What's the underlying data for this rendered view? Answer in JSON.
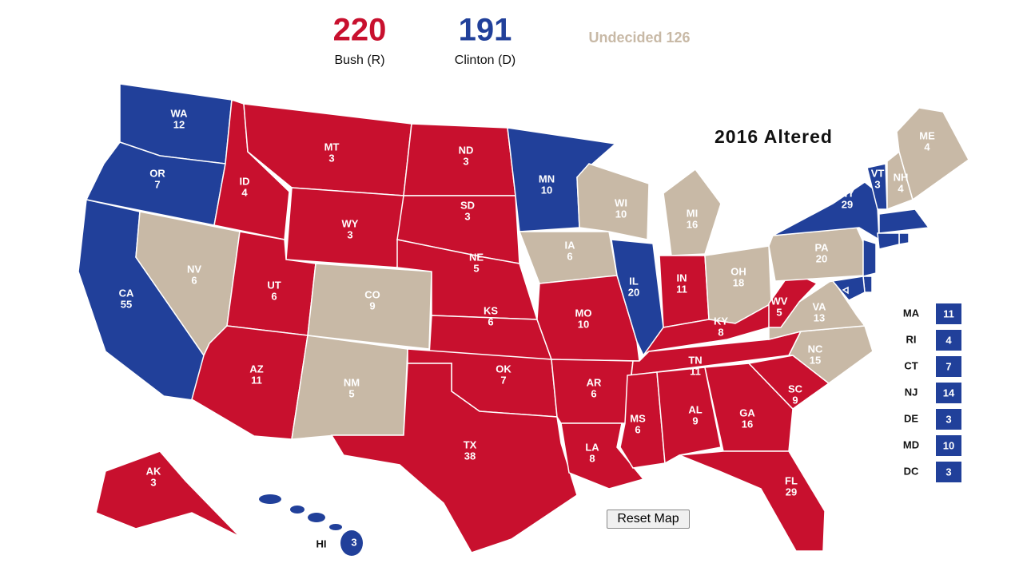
{
  "header": {
    "candidates": [
      {
        "total": 220,
        "name": "Bush (R)",
        "color": "#c8102e"
      },
      {
        "total": 191,
        "name": "Clinton (D)",
        "color": "#21409a"
      }
    ],
    "undecided": "Undecided 126",
    "undecided_color": "#c8b9a6"
  },
  "title": "2016 Altered",
  "button": "Reset Map",
  "states": [
    {
      "abbr": "WA",
      "ev": 12,
      "color": "#21409a"
    },
    {
      "abbr": "OR",
      "ev": 7,
      "color": "#21409a"
    },
    {
      "abbr": "CA",
      "ev": 55,
      "color": "#21409a"
    },
    {
      "abbr": "NV",
      "ev": 6,
      "color": "#c8b9a6"
    },
    {
      "abbr": "ID",
      "ev": 4,
      "color": "#c8102e"
    },
    {
      "abbr": "MT",
      "ev": 3,
      "color": "#c8102e"
    },
    {
      "abbr": "WY",
      "ev": 3,
      "color": "#c8102e"
    },
    {
      "abbr": "UT",
      "ev": 6,
      "color": "#c8102e"
    },
    {
      "abbr": "AZ",
      "ev": 11,
      "color": "#c8102e"
    },
    {
      "abbr": "CO",
      "ev": 9,
      "color": "#c8b9a6"
    },
    {
      "abbr": "NM",
      "ev": 5,
      "color": "#c8b9a6"
    },
    {
      "abbr": "ND",
      "ev": 3,
      "color": "#c8102e"
    },
    {
      "abbr": "SD",
      "ev": 3,
      "color": "#c8102e"
    },
    {
      "abbr": "NE",
      "ev": 5,
      "color": "#c8102e"
    },
    {
      "abbr": "KS",
      "ev": 6,
      "color": "#c8102e"
    },
    {
      "abbr": "OK",
      "ev": 7,
      "color": "#c8102e"
    },
    {
      "abbr": "TX",
      "ev": 38,
      "color": "#c8102e"
    },
    {
      "abbr": "MN",
      "ev": 10,
      "color": "#21409a"
    },
    {
      "abbr": "IA",
      "ev": 6,
      "color": "#c8b9a6"
    },
    {
      "abbr": "MO",
      "ev": 10,
      "color": "#c8102e"
    },
    {
      "abbr": "AR",
      "ev": 6,
      "color": "#c8102e"
    },
    {
      "abbr": "LA",
      "ev": 8,
      "color": "#c8102e"
    },
    {
      "abbr": "WI",
      "ev": 10,
      "color": "#c8b9a6"
    },
    {
      "abbr": "IL",
      "ev": 20,
      "color": "#21409a"
    },
    {
      "abbr": "MI",
      "ev": 16,
      "color": "#c8b9a6"
    },
    {
      "abbr": "IN",
      "ev": 11,
      "color": "#c8102e"
    },
    {
      "abbr": "OH",
      "ev": 18,
      "color": "#c8b9a6"
    },
    {
      "abbr": "KY",
      "ev": 8,
      "color": "#c8102e"
    },
    {
      "abbr": "TN",
      "ev": 11,
      "color": "#c8102e"
    },
    {
      "abbr": "MS",
      "ev": 6,
      "color": "#c8102e"
    },
    {
      "abbr": "AL",
      "ev": 9,
      "color": "#c8102e"
    },
    {
      "abbr": "GA",
      "ev": 16,
      "color": "#c8102e"
    },
    {
      "abbr": "FL",
      "ev": 29,
      "color": "#c8102e"
    },
    {
      "abbr": "SC",
      "ev": 9,
      "color": "#c8102e"
    },
    {
      "abbr": "NC",
      "ev": 15,
      "color": "#c8b9a6"
    },
    {
      "abbr": "VA",
      "ev": 13,
      "color": "#c8b9a6"
    },
    {
      "abbr": "WV",
      "ev": 5,
      "color": "#c8102e"
    },
    {
      "abbr": "PA",
      "ev": 20,
      "color": "#c8b9a6"
    },
    {
      "abbr": "NY",
      "ev": 29,
      "color": "#21409a"
    },
    {
      "abbr": "VT",
      "ev": 3,
      "color": "#21409a"
    },
    {
      "abbr": "NH",
      "ev": 4,
      "color": "#c8b9a6"
    },
    {
      "abbr": "ME",
      "ev": 4,
      "color": "#c8b9a6"
    },
    {
      "abbr": "AK",
      "ev": 3,
      "color": "#c8102e"
    },
    {
      "abbr": "HI",
      "ev": 3,
      "color": "#21409a"
    },
    {
      "abbr": "MA",
      "ev": 11,
      "color": "#21409a"
    },
    {
      "abbr": "RI",
      "ev": 4,
      "color": "#21409a"
    },
    {
      "abbr": "CT",
      "ev": 7,
      "color": "#21409a"
    },
    {
      "abbr": "NJ",
      "ev": 14,
      "color": "#21409a"
    },
    {
      "abbr": "DE",
      "ev": 3,
      "color": "#21409a"
    },
    {
      "abbr": "MD",
      "ev": 10,
      "color": "#21409a"
    },
    {
      "abbr": "DC",
      "ev": 3,
      "color": "#21409a"
    }
  ]
}
